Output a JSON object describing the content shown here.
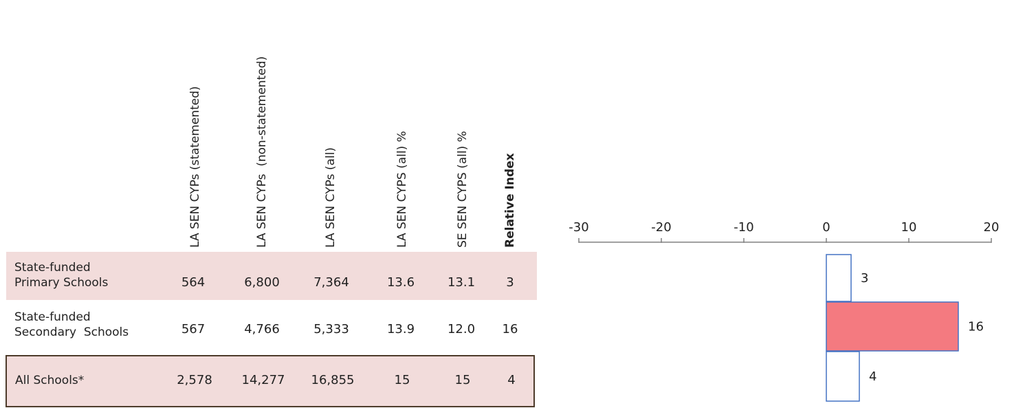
{
  "table": {
    "headers": [
      "LA SEN CYPs (statemented)",
      "LA SEN CYPs  (non-statemented)",
      "LA SEN CYPs (all)",
      "LA SEN CYPS (all) %",
      "SE SEN CYPS (all) %",
      "Relative Index"
    ],
    "rows": [
      {
        "label_line1": "State-funded",
        "label_line2": "Primary Schools",
        "values": [
          "564",
          "6,800",
          "7,364",
          "13.6",
          "13.1",
          "3"
        ]
      },
      {
        "label_line1": "State-funded",
        "label_line2": "Secondary  Schools",
        "values": [
          "567",
          "4,766",
          "5,333",
          "13.9",
          "12.0",
          "16"
        ]
      },
      {
        "label_line1": "All Schools*",
        "values": [
          "2,578",
          "14,277",
          "16,855",
          "15",
          "15",
          "4"
        ]
      }
    ]
  },
  "colors": {
    "row_fill": "#f2dcdb",
    "all_border": "#4d3b2a",
    "bar_fill": "#f47a80",
    "bar_stroke": "#4472c4",
    "axis": "#808080"
  },
  "chart_data": {
    "type": "bar",
    "orientation": "horizontal",
    "categories": [
      "State-funded Primary Schools",
      "State-funded Secondary  Schools",
      "All Schools*"
    ],
    "values": [
      3,
      16,
      4
    ],
    "data_labels": [
      "3",
      "16",
      "4"
    ],
    "xlim": [
      -30,
      20
    ],
    "x_ticks": [
      "-30",
      "-20",
      "-10",
      "0",
      "10",
      "20"
    ],
    "axis_position": "top",
    "grid": false,
    "title": "",
    "xlabel": "",
    "ylabel": ""
  }
}
